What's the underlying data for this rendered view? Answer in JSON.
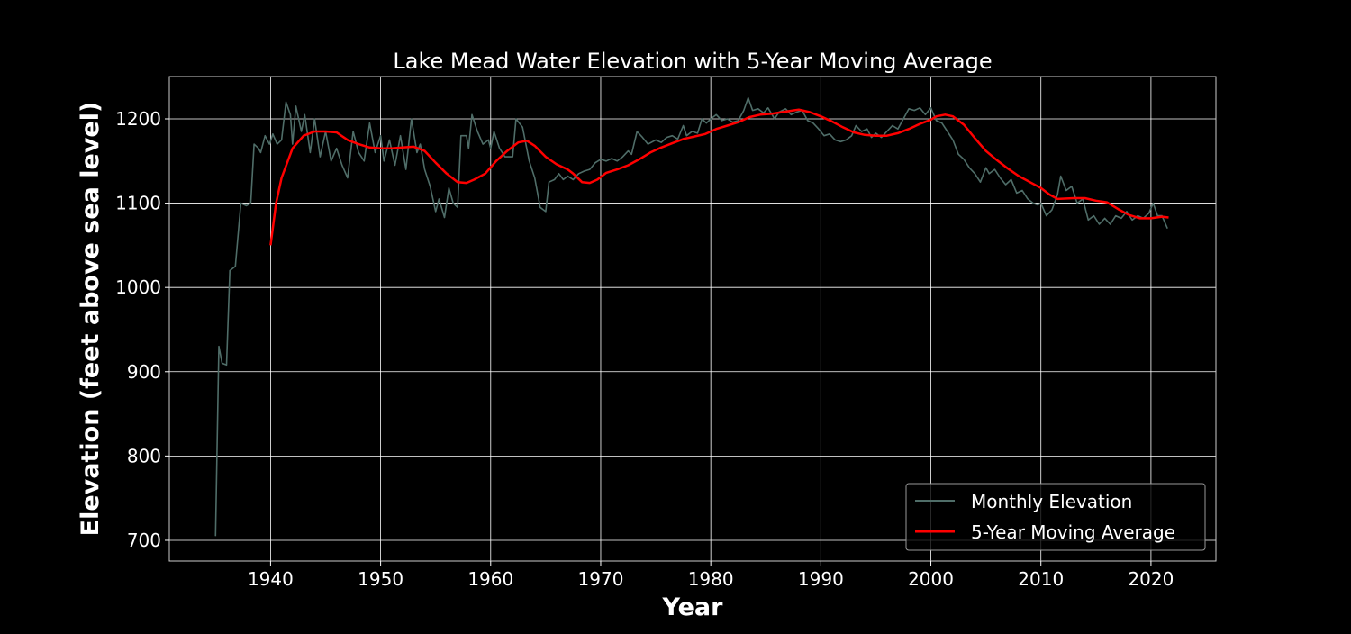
{
  "chart_data": {
    "type": "line",
    "title": "Lake Mead Water Elevation with 5-Year Moving Average",
    "xlabel": "Year",
    "ylabel": "Elevation (feet above sea level)",
    "xlim": [
      1930.8,
      2025.9
    ],
    "ylim": [
      675.4,
      1250.2
    ],
    "xticks": [
      1940,
      1950,
      1960,
      1970,
      1980,
      1990,
      2000,
      2010,
      2020
    ],
    "yticks": [
      700,
      800,
      900,
      1000,
      1100,
      1200
    ],
    "grid": true,
    "legend_position": "lower-right",
    "background": "#000000",
    "series": [
      {
        "name": "Monthly Elevation",
        "color": "#4f6d68",
        "x": [
          1935.0,
          1935.3,
          1935.6,
          1936.0,
          1936.3,
          1936.8,
          1937.3,
          1937.8,
          1938.2,
          1938.5,
          1938.9,
          1939.1,
          1939.5,
          1939.9,
          1940.2,
          1940.6,
          1941.0,
          1941.4,
          1941.8,
          1942.0,
          1942.3,
          1942.8,
          1943.1,
          1943.6,
          1944.0,
          1944.5,
          1945.0,
          1945.5,
          1946.0,
          1946.5,
          1947.0,
          1947.5,
          1948.0,
          1948.5,
          1949.0,
          1949.5,
          1950.0,
          1950.3,
          1950.8,
          1951.3,
          1951.8,
          1952.3,
          1952.8,
          1953.3,
          1953.6,
          1954.0,
          1954.5,
          1955.0,
          1955.3,
          1955.8,
          1956.2,
          1956.6,
          1957.0,
          1957.3,
          1957.8,
          1958.0,
          1958.3,
          1958.8,
          1959.3,
          1959.8,
          1960.0,
          1960.3,
          1960.8,
          1961.3,
          1962.0,
          1962.3,
          1962.9,
          1963.5,
          1964.0,
          1964.5,
          1965.0,
          1965.3,
          1965.8,
          1966.2,
          1966.6,
          1967.0,
          1967.5,
          1968.0,
          1968.5,
          1969.0,
          1969.5,
          1970.0,
          1970.5,
          1971.0,
          1971.5,
          1972.0,
          1972.5,
          1972.8,
          1973.3,
          1973.8,
          1974.3,
          1975.0,
          1975.5,
          1976.0,
          1976.5,
          1977.0,
          1977.5,
          1977.8,
          1978.3,
          1978.8,
          1979.2,
          1979.6,
          1980.0,
          1980.5,
          1981.0,
          1981.5,
          1982.0,
          1982.5,
          1983.0,
          1983.4,
          1983.8,
          1984.3,
          1984.8,
          1985.2,
          1985.8,
          1986.2,
          1986.8,
          1987.3,
          1987.8,
          1988.3,
          1988.8,
          1989.3,
          1989.8,
          1990.3,
          1990.8,
          1991.3,
          1991.8,
          1992.3,
          1992.8,
          1993.2,
          1993.7,
          1994.2,
          1994.6,
          1995.0,
          1995.5,
          1996.0,
          1996.5,
          1997.0,
          1997.5,
          1998.0,
          1998.5,
          1999.0,
          1999.5,
          2000.0,
          2000.5,
          2001.0,
          2001.5,
          2002.0,
          2002.5,
          2003.0,
          2003.5,
          2004.0,
          2004.5,
          2005.0,
          2005.3,
          2005.8,
          2006.3,
          2006.8,
          2007.3,
          2007.8,
          2008.3,
          2008.8,
          2009.3,
          2009.7,
          2010.0,
          2010.5,
          2011.0,
          2011.5,
          2011.8,
          2012.3,
          2012.8,
          2013.3,
          2013.8,
          2014.3,
          2014.8,
          2015.3,
          2015.8,
          2016.3,
          2016.8,
          2017.3,
          2017.8,
          2018.3,
          2018.8,
          2019.3,
          2019.8,
          2020.2,
          2020.6,
          2021.0,
          2021.5
        ],
        "y": [
          705,
          930,
          910,
          908,
          1020,
          1025,
          1100,
          1097,
          1100,
          1170,
          1165,
          1160,
          1180,
          1170,
          1182,
          1170,
          1175,
          1220,
          1205,
          1170,
          1215,
          1185,
          1205,
          1160,
          1200,
          1155,
          1185,
          1150,
          1165,
          1145,
          1130,
          1185,
          1160,
          1150,
          1195,
          1160,
          1180,
          1150,
          1175,
          1145,
          1180,
          1140,
          1200,
          1160,
          1170,
          1140,
          1120,
          1090,
          1105,
          1083,
          1118,
          1100,
          1095,
          1180,
          1180,
          1165,
          1205,
          1185,
          1170,
          1175,
          1165,
          1185,
          1165,
          1155,
          1155,
          1200,
          1190,
          1150,
          1130,
          1095,
          1090,
          1125,
          1128,
          1135,
          1128,
          1132,
          1128,
          1135,
          1138,
          1140,
          1148,
          1152,
          1150,
          1153,
          1150,
          1155,
          1162,
          1158,
          1185,
          1178,
          1170,
          1175,
          1172,
          1178,
          1180,
          1176,
          1192,
          1180,
          1185,
          1183,
          1200,
          1195,
          1200,
          1205,
          1198,
          1200,
          1196,
          1198,
          1210,
          1225,
          1210,
          1212,
          1207,
          1213,
          1200,
          1208,
          1212,
          1205,
          1208,
          1210,
          1198,
          1195,
          1188,
          1180,
          1182,
          1175,
          1173,
          1175,
          1180,
          1192,
          1185,
          1188,
          1178,
          1183,
          1178,
          1185,
          1192,
          1188,
          1200,
          1212,
          1210,
          1213,
          1205,
          1213,
          1198,
          1195,
          1185,
          1175,
          1158,
          1152,
          1142,
          1135,
          1125,
          1142,
          1135,
          1140,
          1130,
          1122,
          1128,
          1112,
          1115,
          1105,
          1100,
          1098,
          1100,
          1085,
          1092,
          1110,
          1132,
          1115,
          1120,
          1100,
          1105,
          1080,
          1085,
          1075,
          1082,
          1075,
          1085,
          1082,
          1090,
          1080,
          1085,
          1082,
          1088,
          1100,
          1085,
          1085,
          1070
        ]
      },
      {
        "name": "5-Year Moving Average",
        "color": "#ff0000",
        "x": [
          1940.0,
          1940.5,
          1941,
          1942,
          1943,
          1944,
          1945,
          1946,
          1947,
          1948,
          1949,
          1950,
          1951,
          1952,
          1953,
          1954,
          1955,
          1956,
          1957,
          1957.8,
          1958.5,
          1959.5,
          1960.5,
          1961.5,
          1962.5,
          1963.3,
          1964,
          1965,
          1966,
          1967,
          1967.5,
          1968.3,
          1969,
          1969.7,
          1970.5,
          1971.5,
          1972.5,
          1973.5,
          1974.5,
          1975.5,
          1976.5,
          1977.5,
          1978.5,
          1979.5,
          1980.5,
          1981.5,
          1982.5,
          1983.5,
          1984.5,
          1985.5,
          1986.5,
          1987.5,
          1988,
          1989,
          1990,
          1991,
          1992,
          1993,
          1994,
          1995,
          1996,
          1997,
          1998,
          1999,
          2000,
          2000.5,
          2001.3,
          2002,
          2003,
          2004,
          2005,
          2006,
          2007,
          2008,
          2009,
          2010,
          2010.8,
          2011.5,
          2013,
          2014,
          2015,
          2016,
          2017,
          2018,
          2019,
          2020,
          2021,
          2021.6
        ],
        "y": [
          1050,
          1100,
          1130,
          1165,
          1180,
          1185,
          1185,
          1184,
          1175,
          1170,
          1166,
          1165,
          1165,
          1166,
          1167,
          1162,
          1148,
          1135,
          1125,
          1124,
          1128,
          1135,
          1150,
          1162,
          1172,
          1174,
          1168,
          1155,
          1146,
          1140,
          1135,
          1125,
          1124,
          1128,
          1136,
          1140,
          1145,
          1152,
          1160,
          1166,
          1171,
          1176,
          1179,
          1182,
          1188,
          1192,
          1196,
          1202,
          1205,
          1206,
          1208,
          1210,
          1211,
          1208,
          1203,
          1197,
          1190,
          1184,
          1181,
          1180,
          1180,
          1183,
          1188,
          1194,
          1199,
          1203,
          1205,
          1203,
          1193,
          1177,
          1162,
          1151,
          1141,
          1132,
          1125,
          1118,
          1110,
          1105,
          1106,
          1106,
          1103,
          1101,
          1093,
          1086,
          1082,
          1082,
          1084,
          1083
        ]
      }
    ]
  }
}
